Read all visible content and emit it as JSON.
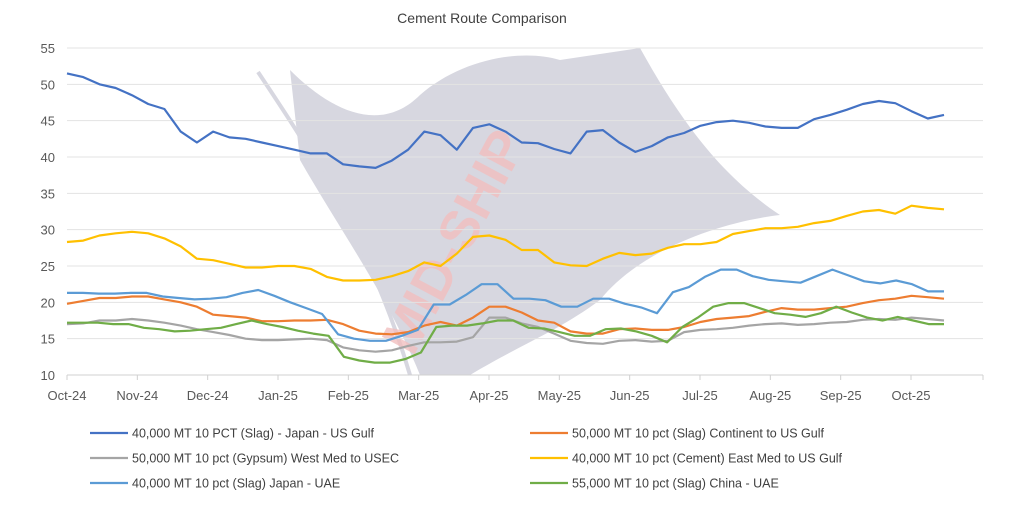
{
  "watermark_text": "MID-SHIP",
  "chart_data": {
    "type": "line",
    "title": "Cement Route Comparison",
    "xlabel": "",
    "ylabel": "",
    "ylim": [
      10,
      55
    ],
    "yticks": [
      10,
      15,
      20,
      25,
      30,
      35,
      40,
      45,
      50,
      55
    ],
    "xticks": [
      "Oct-24",
      "Nov-24",
      "Dec-24",
      "Jan-25",
      "Feb-25",
      "Mar-25",
      "Apr-25",
      "May-25",
      "Jun-25",
      "Jul-25",
      "Aug-25",
      "Sep-25",
      "Oct-25"
    ],
    "grid": true,
    "legend_position": "bottom",
    "series": [
      {
        "name": "40,000 MT 10 PCT  (Slag) - Japan - US Gulf",
        "color": "#4472c4",
        "values": [
          51.5,
          51,
          50,
          49.5,
          48.5,
          47.3,
          46.6,
          43.5,
          42,
          43.5,
          42.7,
          42.5,
          42,
          41.5,
          41,
          40.5,
          40.5,
          39,
          38.7,
          38.5,
          39.5,
          41,
          43.5,
          43,
          41,
          44,
          44.5,
          43.5,
          42,
          41.9,
          41.1,
          40.5,
          43.5,
          43.7,
          42,
          40.7,
          41.5,
          42.7,
          43.3,
          44.3,
          44.8,
          45,
          44.7,
          44.2,
          44,
          44,
          45.2,
          45.8,
          46.5,
          47.3,
          47.7,
          47.4,
          46.3,
          45.3,
          45.8
        ]
      },
      {
        "name": "50,000 MT 10 pct (Slag) Continent  to US Gulf",
        "color": "#ed7d31",
        "values": [
          19.8,
          20.2,
          20.6,
          20.6,
          20.8,
          20.8,
          20.4,
          20,
          19.4,
          18.3,
          18.1,
          17.9,
          17.4,
          17.4,
          17.5,
          17.5,
          17.6,
          17,
          16.1,
          15.7,
          15.6,
          15.9,
          16.8,
          17.3,
          16.8,
          17.9,
          19.4,
          19.4,
          18.6,
          17.5,
          17.2,
          16,
          15.7,
          15.7,
          16.3,
          16.4,
          16.2,
          16.2,
          16.6,
          17.3,
          17.7,
          17.9,
          18.1,
          18.7,
          19.2,
          19,
          19,
          19.2,
          19.4,
          19.9,
          20.3,
          20.5,
          20.9,
          20.7,
          20.5
        ]
      },
      {
        "name": "50,000 MT 10 pct  (Gypsum) West Med  to USEC",
        "color": "#a5a5a5",
        "values": [
          17,
          17.1,
          17.5,
          17.5,
          17.7,
          17.5,
          17.2,
          16.8,
          16.3,
          15.9,
          15.5,
          15,
          14.8,
          14.8,
          14.9,
          15,
          14.8,
          13.8,
          13.4,
          13.2,
          13.4,
          14,
          14.5,
          14.5,
          14.6,
          15.2,
          17.9,
          17.9,
          17.1,
          16.6,
          15.7,
          14.7,
          14.4,
          14.3,
          14.7,
          14.8,
          14.6,
          14.7,
          15.9,
          16.2,
          16.3,
          16.5,
          16.8,
          17,
          17.1,
          16.9,
          17,
          17.2,
          17.3,
          17.6,
          17.7,
          17.6,
          17.9,
          17.7,
          17.5
        ]
      },
      {
        "name": "40,000 MT 10 pct (Cement) East Med to US Gulf",
        "color": "#ffc000",
        "values": [
          28.3,
          28.5,
          29.2,
          29.5,
          29.7,
          29.5,
          28.8,
          27.7,
          26,
          25.8,
          25.3,
          24.8,
          24.8,
          25,
          25,
          24.6,
          23.5,
          23,
          23,
          23.1,
          23.6,
          24.3,
          25.5,
          25,
          26.7,
          29,
          29.2,
          28.6,
          27.2,
          27.2,
          25.5,
          25.1,
          25,
          26,
          26.8,
          26.5,
          26.7,
          27.5,
          28,
          28,
          28.3,
          29.4,
          29.8,
          30.2,
          30.2,
          30.4,
          30.9,
          31.2,
          31.9,
          32.5,
          32.7,
          32.2,
          33.3,
          33,
          32.8
        ]
      },
      {
        "name": "40,000 MT 10 pct  (Slag) Japan - UAE",
        "color": "#5b9bd5",
        "values": [
          21.3,
          21.3,
          21.2,
          21.2,
          21.3,
          21.3,
          20.8,
          20.6,
          20.4,
          20.5,
          20.7,
          21.3,
          21.7,
          20.9,
          20,
          19.2,
          18.4,
          15.6,
          15,
          14.7,
          14.7,
          15.4,
          16.2,
          19.7,
          19.7,
          21,
          22.5,
          22.5,
          20.5,
          20.5,
          20.3,
          19.4,
          19.4,
          20.5,
          20.5,
          19.8,
          19.3,
          18.5,
          21.4,
          22.1,
          23.5,
          24.5,
          24.5,
          23.6,
          23.1,
          22.9,
          22.7,
          23.6,
          24.5,
          23.7,
          22.9,
          22.6,
          23,
          22.5,
          21.5,
          21.5
        ]
      },
      {
        "name": "55,000 MT 10 pct  (Slag) China - UAE",
        "color": "#70ad47",
        "values": [
          17.2,
          17.2,
          17.2,
          17,
          17,
          16.5,
          16.3,
          16,
          16.1,
          16.3,
          16.5,
          17,
          17.5,
          17,
          16.6,
          16.1,
          15.7,
          15.4,
          12.5,
          12,
          11.7,
          11.7,
          12.2,
          13.1,
          16.6,
          16.8,
          16.8,
          17.1,
          17.5,
          17.5,
          16.5,
          16.4,
          15.9,
          15.4,
          15.4,
          16.3,
          16.4,
          16,
          15.4,
          14.5,
          16.6,
          17.9,
          19.4,
          19.9,
          19.9,
          19.2,
          18.5,
          18.3,
          18,
          18.5,
          19.4,
          18.6,
          17.9,
          17.5,
          18,
          17.5,
          17,
          17
        ]
      }
    ]
  }
}
